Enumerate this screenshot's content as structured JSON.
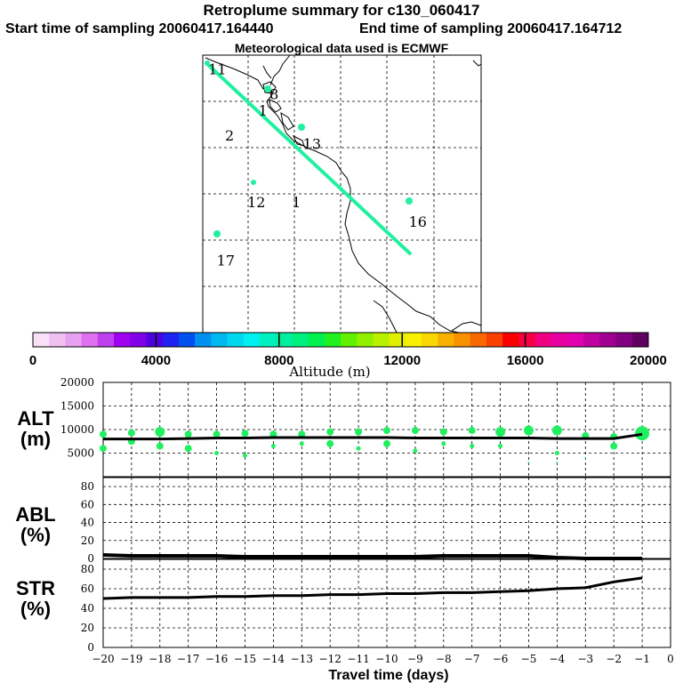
{
  "header": {
    "title": "Retroplume summary for c130_060417",
    "start_label": "Start time of sampling 20060417.164440",
    "end_label": "End time of sampling 20060417.164712",
    "met_label": "Meteorological data used is ECMWF"
  },
  "map": {
    "labels": [
      {
        "text": "11",
        "lon": 0.02,
        "lat": 0.03
      },
      {
        "text": "8",
        "lon": 0.24,
        "lat": 0.12
      },
      {
        "text": "1",
        "lon": 0.2,
        "lat": 0.18
      },
      {
        "text": "2",
        "lon": 0.08,
        "lat": 0.27
      },
      {
        "text": "13",
        "lon": 0.36,
        "lat": 0.3
      },
      {
        "text": "12",
        "lon": 0.16,
        "lat": 0.51
      },
      {
        "text": "1",
        "lon": 0.32,
        "lat": 0.51
      },
      {
        "text": "16",
        "lon": 0.74,
        "lat": 0.58
      },
      {
        "text": "17",
        "lon": 0.05,
        "lat": 0.72
      }
    ]
  },
  "colorbar": {
    "label": "Altitude (m)",
    "ticks": [
      "0",
      "4000",
      "8000",
      "12000",
      "16000",
      "20000"
    ],
    "colors": [
      "#f8e0f8",
      "#f0c0f0",
      "#e8a0f0",
      "#e070f0",
      "#c040f0",
      "#a000f0",
      "#8000e8",
      "#5000e0",
      "#2020f0",
      "#0050f0",
      "#0090f0",
      "#00b8f0",
      "#00d8f0",
      "#00f0f0",
      "#00f0c0",
      "#00f0a0",
      "#00f080",
      "#00f050",
      "#20f020",
      "#60f000",
      "#90f000",
      "#b8f000",
      "#e0f000",
      "#f8f000",
      "#f8d800",
      "#f8b000",
      "#f89000",
      "#f86800",
      "#f84000",
      "#f80000",
      "#f80040",
      "#f00080",
      "#e800a0",
      "#e000b0",
      "#c000a0",
      "#a00090",
      "#800080",
      "#600060"
    ]
  },
  "alt_panel": {
    "label_line1": "ALT",
    "label_line2": "(m)",
    "ticks": [
      "20000",
      "15000",
      "10000",
      "5000"
    ]
  },
  "abl_panel": {
    "label_line1": "ABL",
    "label_line2": "(%)",
    "ticks": [
      "80",
      "60",
      "40",
      "20",
      "0"
    ]
  },
  "str_panel": {
    "label_line1": "STR",
    "label_line2": "(%)",
    "ticks": [
      "80",
      "60",
      "40",
      "20",
      "0"
    ]
  },
  "x_axis": {
    "label": "Travel time (days)",
    "ticks": [
      "−20",
      "−19",
      "−18",
      "−17",
      "−16",
      "−15",
      "−14",
      "−13",
      "−12",
      "−11",
      "−10",
      "−9",
      "−8",
      "−7",
      "−6",
      "−5",
      "−4",
      "−3",
      "−2",
      "−1",
      "0"
    ]
  },
  "chart_data": {
    "type": "line",
    "x_label": "Travel time (days)",
    "x": [
      -20,
      -19,
      -18,
      -17,
      -16,
      -15,
      -14,
      -13,
      -12,
      -11,
      -10,
      -9,
      -8,
      -7,
      -6,
      -5,
      -4,
      -3,
      -2,
      -1
    ],
    "xlim": [
      -20,
      0
    ],
    "series": [
      {
        "name": "ALT (m)",
        "ylim": [
          0,
          20000
        ],
        "values": [
          8000,
          8000,
          8000,
          8100,
          8200,
          8200,
          8300,
          8300,
          8300,
          8300,
          8300,
          8200,
          8200,
          8200,
          8200,
          8200,
          8100,
          8100,
          8100,
          9000
        ]
      },
      {
        "name": "ABL (%)",
        "ylim": [
          0,
          90
        ],
        "values": [
          4,
          3,
          3,
          3,
          3,
          2,
          2,
          2,
          2,
          2,
          2,
          2,
          3,
          3,
          3,
          3,
          1,
          0,
          0,
          0
        ]
      },
      {
        "name": "STR (%)",
        "ylim": [
          0,
          90
        ],
        "values": [
          50,
          51,
          51,
          51,
          52,
          52,
          53,
          53,
          54,
          54,
          55,
          55,
          56,
          56,
          57,
          58,
          60,
          61,
          67,
          71
        ]
      }
    ],
    "alt_cluster_points": [
      {
        "x": -20,
        "y": 6000,
        "size": 2
      },
      {
        "x": -20,
        "y": 9000,
        "size": 2
      },
      {
        "x": -19,
        "y": 7500,
        "size": 2
      },
      {
        "x": -19,
        "y": 9300,
        "size": 2
      },
      {
        "x": -18,
        "y": 6500,
        "size": 2
      },
      {
        "x": -18,
        "y": 9500,
        "size": 3
      },
      {
        "x": -17,
        "y": 6000,
        "size": 2
      },
      {
        "x": -17,
        "y": 9000,
        "size": 2
      },
      {
        "x": -16,
        "y": 5000,
        "size": 1
      },
      {
        "x": -16,
        "y": 9000,
        "size": 2
      },
      {
        "x": -15,
        "y": 4500,
        "size": 1
      },
      {
        "x": -15,
        "y": 9200,
        "size": 2
      },
      {
        "x": -14,
        "y": 6500,
        "size": 1
      },
      {
        "x": -14,
        "y": 9000,
        "size": 2
      },
      {
        "x": -13,
        "y": 7000,
        "size": 1
      },
      {
        "x": -13,
        "y": 9000,
        "size": 2
      },
      {
        "x": -12,
        "y": 7000,
        "size": 2
      },
      {
        "x": -12,
        "y": 9500,
        "size": 2
      },
      {
        "x": -11,
        "y": 6000,
        "size": 1
      },
      {
        "x": -11,
        "y": 9500,
        "size": 2
      },
      {
        "x": -10,
        "y": 7000,
        "size": 2
      },
      {
        "x": -10,
        "y": 9800,
        "size": 2
      },
      {
        "x": -9,
        "y": 5500,
        "size": 1
      },
      {
        "x": -9,
        "y": 9800,
        "size": 2
      },
      {
        "x": -8,
        "y": 7000,
        "size": 1
      },
      {
        "x": -8,
        "y": 9500,
        "size": 2
      },
      {
        "x": -7,
        "y": 6500,
        "size": 1
      },
      {
        "x": -7,
        "y": 9800,
        "size": 2
      },
      {
        "x": -6,
        "y": 6500,
        "size": 1
      },
      {
        "x": -6,
        "y": 9500,
        "size": 3
      },
      {
        "x": -5,
        "y": 3000,
        "size": 0
      },
      {
        "x": -5,
        "y": 9800,
        "size": 3
      },
      {
        "x": -4,
        "y": 5000,
        "size": 1
      },
      {
        "x": -4,
        "y": 3000,
        "size": 0
      },
      {
        "x": -4,
        "y": 9800,
        "size": 3
      },
      {
        "x": -3,
        "y": 4000,
        "size": 0
      },
      {
        "x": -3,
        "y": 8700,
        "size": 2
      },
      {
        "x": -2,
        "y": 6500,
        "size": 2
      },
      {
        "x": -2,
        "y": 8500,
        "size": 2
      },
      {
        "x": -1,
        "y": 9200,
        "size": 4
      }
    ]
  }
}
